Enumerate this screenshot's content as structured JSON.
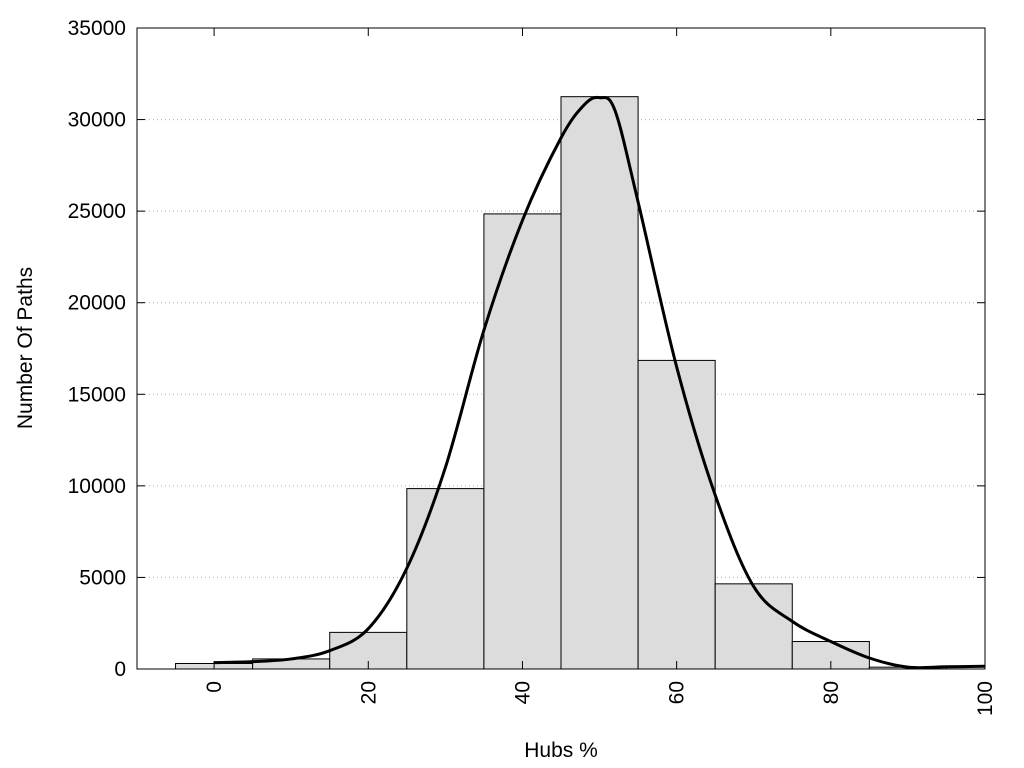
{
  "chart_data": {
    "type": "bar",
    "xlabel": "Hubs %",
    "ylabel": "Number Of Paths",
    "xlim": [
      -10,
      100
    ],
    "ylim": [
      0,
      35000
    ],
    "xticks": [
      "0",
      "20",
      "40",
      "60",
      "80",
      "100"
    ],
    "yticks": [
      "0",
      "5000",
      "10000",
      "15000",
      "20000",
      "25000",
      "30000",
      "35000"
    ],
    "grid": "horizontal-dotted",
    "bin_width": 10,
    "bars": [
      {
        "x": 0,
        "value": 300
      },
      {
        "x": 10,
        "value": 550
      },
      {
        "x": 20,
        "value": 2000
      },
      {
        "x": 30,
        "value": 9850
      },
      {
        "x": 40,
        "value": 24850
      },
      {
        "x": 50,
        "value": 31250
      },
      {
        "x": 60,
        "value": 16850
      },
      {
        "x": 70,
        "value": 4650
      },
      {
        "x": 80,
        "value": 1500
      },
      {
        "x": 90,
        "value": 100
      }
    ],
    "curve": {
      "x": [
        0,
        5,
        10,
        15,
        20,
        25,
        30,
        35,
        40,
        45,
        48,
        50,
        52,
        55,
        60,
        65,
        70,
        75,
        80,
        85,
        90,
        95,
        100
      ],
      "y": [
        350,
        400,
        550,
        1000,
        2200,
        5500,
        11000,
        18500,
        24500,
        29000,
        30800,
        31200,
        30500,
        25500,
        16500,
        9500,
        4500,
        2600,
        1500,
        600,
        100,
        120,
        150
      ]
    }
  }
}
